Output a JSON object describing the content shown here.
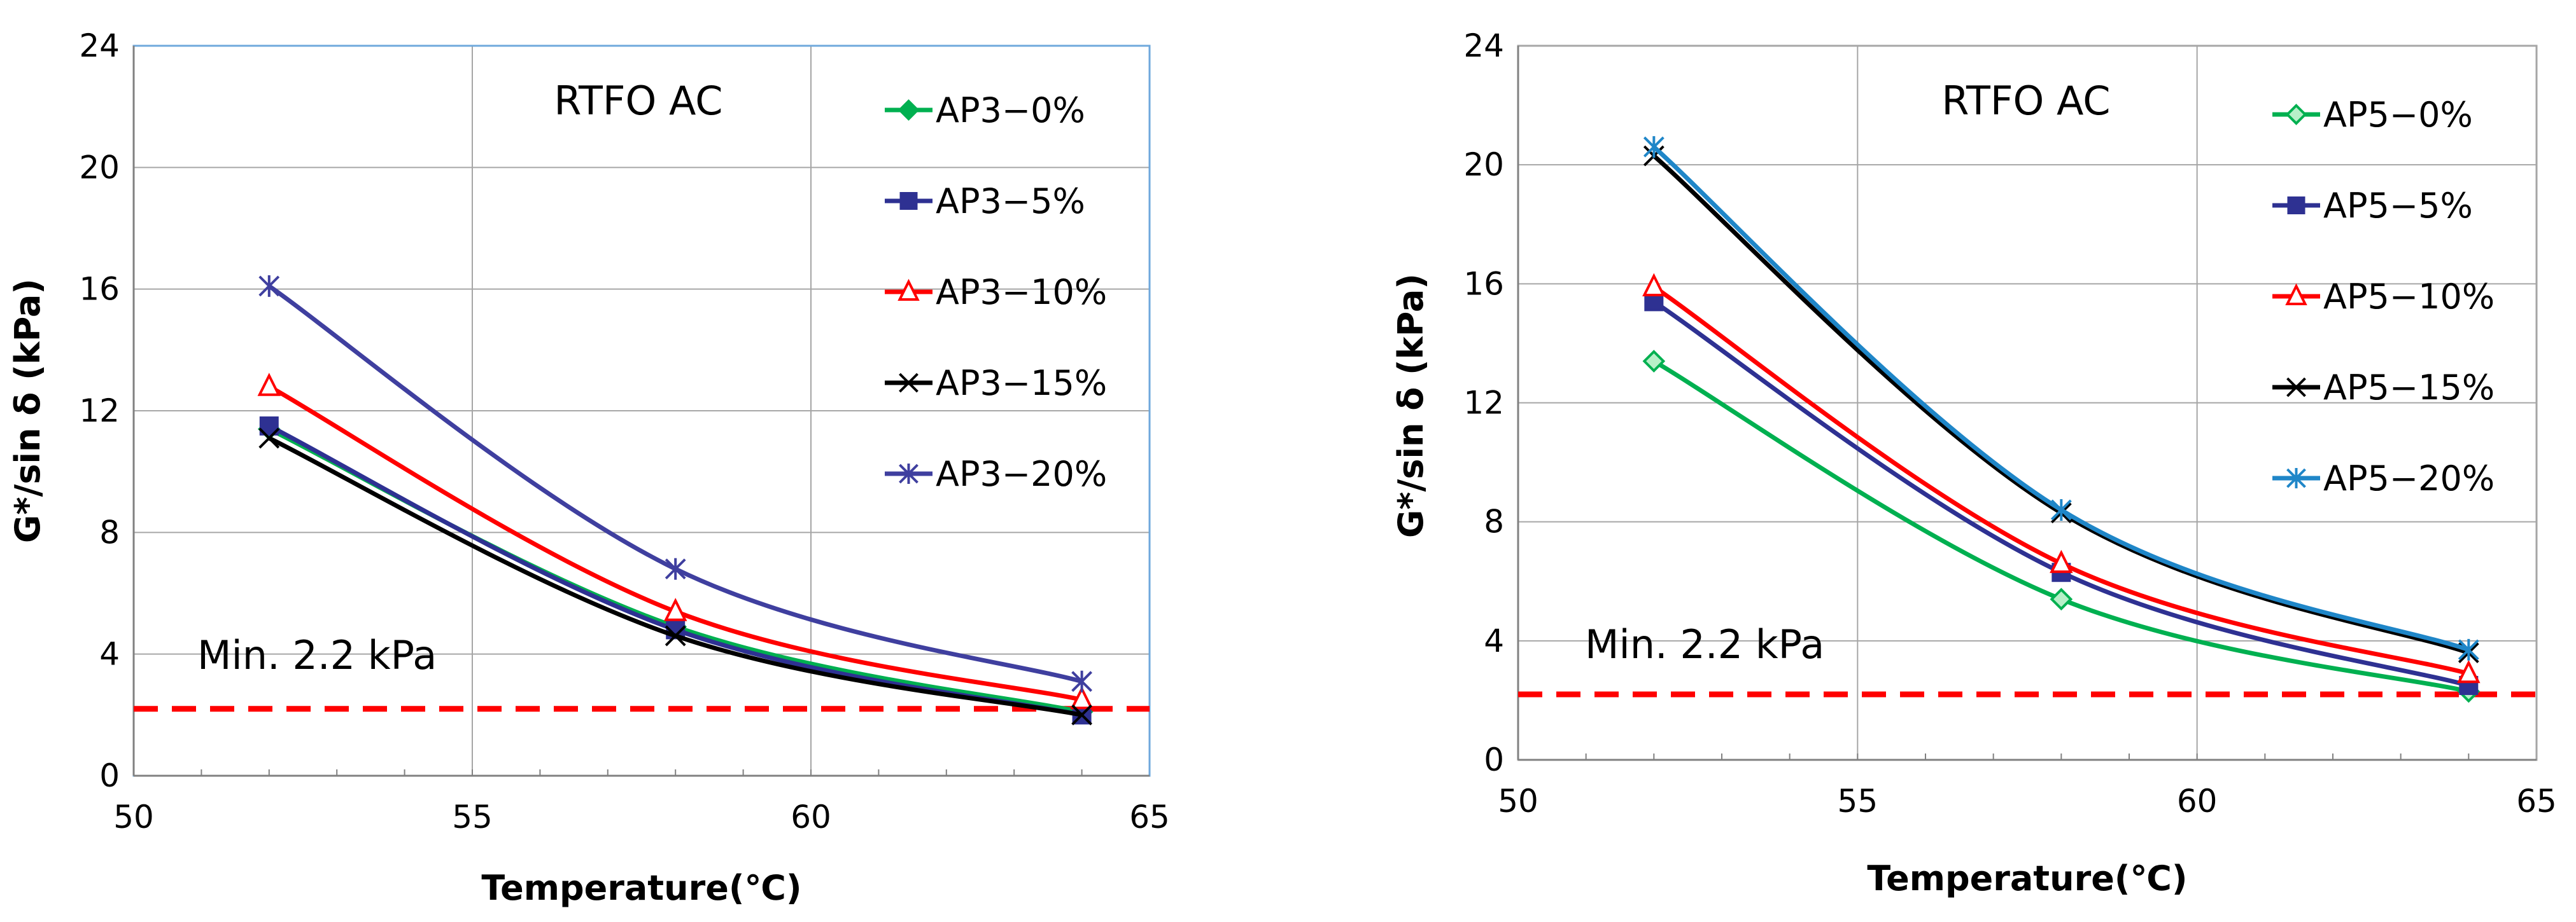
{
  "chart_data": [
    {
      "type": "line",
      "title": "RTFO AC",
      "xlabel": "Temperature(℃)",
      "ylabel": "G*/sin δ (kPa)",
      "xlim": [
        50,
        65
      ],
      "ylim": [
        0,
        24
      ],
      "xticks": [
        "50",
        "55",
        "60",
        "65"
      ],
      "yticks": [
        "0",
        "4",
        "8",
        "12",
        "16",
        "20",
        "24"
      ],
      "xtick_values": [
        50,
        55,
        60,
        65
      ],
      "ytick_values": [
        0,
        4,
        8,
        12,
        16,
        20,
        24
      ],
      "grid": true,
      "legend_position": "right",
      "x": [
        52,
        58,
        64
      ],
      "series": [
        {
          "name": "AP3−0%",
          "values": [
            11.4,
            4.9,
            2.1
          ],
          "color": "#00b050",
          "marker": "diamond-filled"
        },
        {
          "name": "AP3−5%",
          "values": [
            11.5,
            4.8,
            2.0
          ],
          "color": "#2e3192",
          "marker": "square-filled"
        },
        {
          "name": "AP3−10%",
          "values": [
            12.8,
            5.4,
            2.5
          ],
          "color": "#ff0000",
          "marker": "triangle-open"
        },
        {
          "name": "AP3−15%",
          "values": [
            11.1,
            4.6,
            2.0
          ],
          "color": "#000000",
          "marker": "x"
        },
        {
          "name": "AP3−20%",
          "values": [
            16.1,
            6.8,
            3.1
          ],
          "color": "#3f3f9f",
          "marker": "asterisk"
        }
      ],
      "reference_line": {
        "value": 2.2,
        "label": "Min. 2.2 kPa",
        "color": "#ff0000",
        "style": "dashed"
      }
    },
    {
      "type": "line",
      "title": "RTFO AC",
      "xlabel": "Temperature(℃)",
      "ylabel": "G*/sin δ (kPa)",
      "xlim": [
        50,
        65
      ],
      "ylim": [
        0,
        24
      ],
      "xticks": [
        "50",
        "55",
        "60",
        "65"
      ],
      "yticks": [
        "0",
        "4",
        "8",
        "12",
        "16",
        "20",
        "24"
      ],
      "xtick_values": [
        50,
        55,
        60,
        65
      ],
      "ytick_values": [
        0,
        4,
        8,
        12,
        16,
        20,
        24
      ],
      "grid": true,
      "legend_position": "right",
      "x": [
        52,
        58,
        64
      ],
      "series": [
        {
          "name": "AP5−0%",
          "values": [
            13.4,
            5.4,
            2.3
          ],
          "color": "#00b050",
          "marker": "diamond-open"
        },
        {
          "name": "AP5−5%",
          "values": [
            15.4,
            6.3,
            2.5
          ],
          "color": "#2e3192",
          "marker": "square-filled"
        },
        {
          "name": "AP5−10%",
          "values": [
            15.9,
            6.6,
            2.9
          ],
          "color": "#ff0000",
          "marker": "triangle-open"
        },
        {
          "name": "AP5−15%",
          "values": [
            20.3,
            8.3,
            3.6
          ],
          "color": "#000000",
          "marker": "x"
        },
        {
          "name": "AP5−20%",
          "values": [
            20.6,
            8.4,
            3.7
          ],
          "color": "#1f86c8",
          "marker": "asterisk"
        }
      ],
      "reference_line": {
        "value": 2.2,
        "label": "Min. 2.2 kPa",
        "color": "#ff0000",
        "style": "dashed"
      }
    }
  ]
}
